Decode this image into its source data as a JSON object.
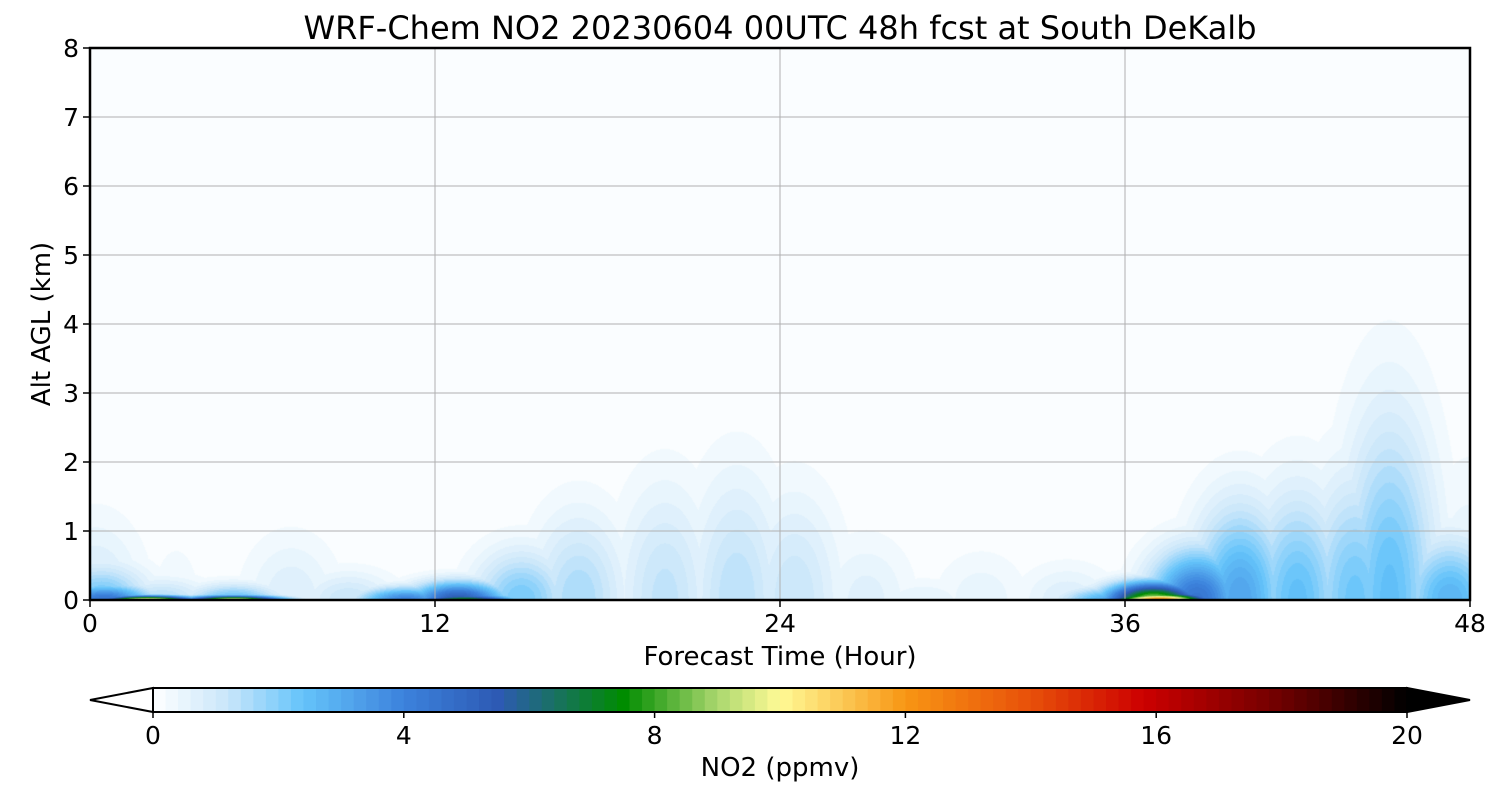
{
  "chart_data": {
    "type": "heatmap",
    "title": "WRF-Chem NO2  20230604 00UTC 48h fcst at South DeKalb",
    "xlabel": "Forecast Time (Hour)",
    "ylabel": "Alt AGL (km)",
    "xlim": [
      0,
      48
    ],
    "ylim": [
      0,
      8
    ],
    "xticks": [
      "0",
      "12",
      "24",
      "36",
      "48"
    ],
    "yticks": [
      "0",
      "1",
      "2",
      "3",
      "4",
      "5",
      "6",
      "7",
      "8"
    ],
    "grid": true,
    "colorbar": {
      "label": "NO2  (ppmv)",
      "range": [
        0,
        20
      ],
      "ticks": [
        "0",
        "4",
        "8",
        "12",
        "16",
        "20"
      ],
      "extend": "both",
      "levels": 100
    },
    "background_value": 0.1,
    "features": [
      {
        "t": 0.0,
        "h": 2.1,
        "v": 0.15
      },
      {
        "t": 0.2,
        "h": 1.1,
        "v": 1.0
      },
      {
        "t": 0.4,
        "h": 0.5,
        "v": 2.4
      },
      {
        "t": 0.5,
        "h": 0.22,
        "v": 4.5
      },
      {
        "t": 2.0,
        "h": 0.06,
        "v": 10.5
      },
      {
        "t": 5.0,
        "h": 0.06,
        "v": 10.0
      },
      {
        "t": 2.5,
        "h": 0.3,
        "v": 1.5
      },
      {
        "t": 5.0,
        "h": 0.22,
        "v": 2.5
      },
      {
        "t": 3.0,
        "h": 1.5,
        "v": 0.25
      },
      {
        "t": 7.0,
        "h": 0.9,
        "v": 0.8
      },
      {
        "t": 9.0,
        "h": 0.4,
        "v": 1.2
      },
      {
        "t": 11.0,
        "h": 0.18,
        "v": 4.0
      },
      {
        "t": 12.8,
        "h": 0.25,
        "v": 5.5
      },
      {
        "t": 13.0,
        "h": 0.08,
        "v": 7.5
      },
      {
        "t": 15.0,
        "h": 0.7,
        "v": 2.2
      },
      {
        "t": 17.0,
        "h": 1.2,
        "v": 1.6
      },
      {
        "t": 20.0,
        "h": 1.6,
        "v": 1.3
      },
      {
        "t": 22.5,
        "h": 1.75,
        "v": 1.4
      },
      {
        "t": 24.5,
        "h": 1.5,
        "v": 1.2
      },
      {
        "t": 27.0,
        "h": 0.9,
        "v": 0.7
      },
      {
        "t": 29.0,
        "h": 0.3,
        "v": 0.6
      },
      {
        "t": 31.0,
        "h": 0.7,
        "v": 0.55
      },
      {
        "t": 34.0,
        "h": 0.5,
        "v": 0.8
      },
      {
        "t": 35.5,
        "h": 0.18,
        "v": 3.0
      },
      {
        "t": 37.0,
        "h": 0.24,
        "v": 9.0
      },
      {
        "t": 37.2,
        "h": 0.1,
        "v": 12.5
      },
      {
        "t": 38.5,
        "h": 0.7,
        "v": 4.5
      },
      {
        "t": 40.0,
        "h": 1.3,
        "v": 3.2
      },
      {
        "t": 42.0,
        "h": 1.5,
        "v": 2.5
      },
      {
        "t": 44.0,
        "h": 1.7,
        "v": 2.3
      },
      {
        "t": 45.2,
        "h": 2.55,
        "v": 2.5
      },
      {
        "t": 46.2,
        "h": 0.35,
        "v": 1.2
      },
      {
        "t": 47.3,
        "h": 0.85,
        "v": 2.8
      },
      {
        "t": 48.0,
        "h": 1.85,
        "v": 0.7
      }
    ]
  }
}
